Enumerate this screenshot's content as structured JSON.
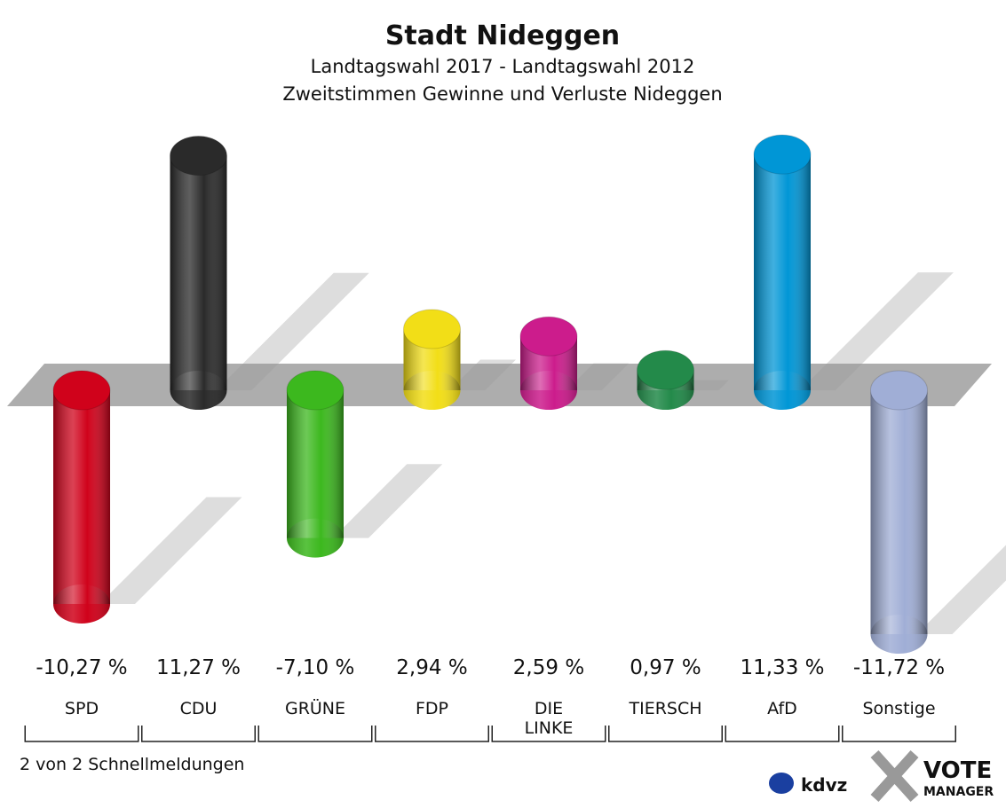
{
  "chart_data": {
    "type": "bar",
    "title": "Stadt Nideggen",
    "subtitle": [
      "Landtagswahl 2017 - Landtagswahl 2012",
      "Zweitstimmen Gewinne und Verluste Nideggen"
    ],
    "categories": [
      "SPD",
      "CDU",
      "GRÜNE",
      "FDP",
      "DIE LINKE",
      "TIERSCH",
      "AfD",
      "Sonstige"
    ],
    "values": [
      -10.27,
      11.27,
      -7.1,
      2.94,
      2.59,
      0.97,
      11.33,
      -11.72
    ],
    "value_labels": [
      "-10,27 %",
      "11,27 %",
      "-7,10 %",
      "2,94 %",
      "2,59 %",
      "0,97 %",
      "11,33 %",
      "-11,72 %"
    ],
    "colors": [
      "#d0021b",
      "#2a2a2a",
      "#3cb81e",
      "#f2de17",
      "#cc1c8c",
      "#238a4a",
      "#0096d6",
      "#a0aed6"
    ],
    "footer": "2 von 2 Schnellmeldungen",
    "logos": [
      "kdvz",
      "VOTE",
      "MANAGER"
    ]
  }
}
